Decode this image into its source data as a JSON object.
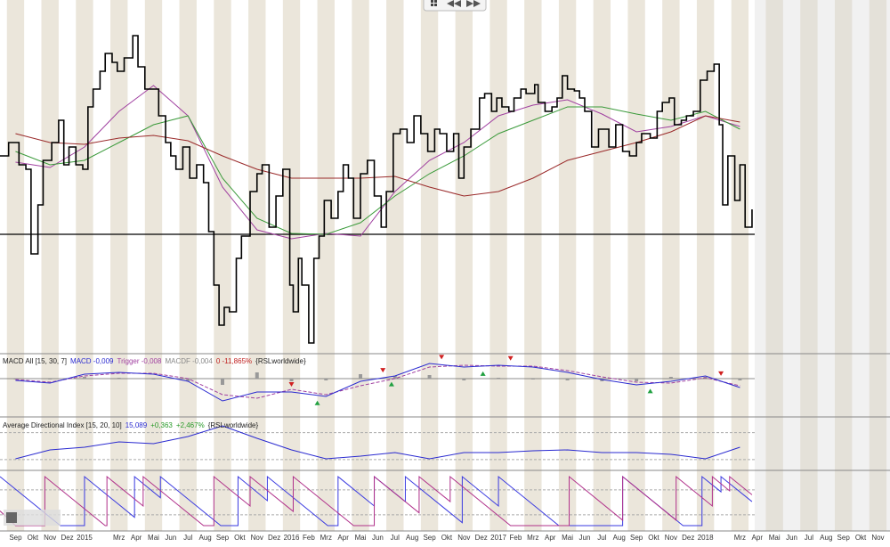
{
  "chart_data": [
    {
      "type": "price",
      "categories": [
        "Sep",
        "Okt",
        "Nov",
        "Dez",
        "2015",
        null,
        "Mrz",
        "Apr",
        "Mai",
        "Jun",
        "Jul",
        "Aug",
        "Sep",
        "Okt",
        "Nov",
        "Dez",
        "2016",
        "Feb",
        "Mrz",
        "Apr",
        "Mai",
        "Jun",
        "Jul",
        "Aug",
        "Sep",
        "Okt",
        "Nov",
        "Dez",
        "2017",
        "Feb",
        "Mrz",
        "Apr",
        "Mai",
        "Jun",
        "Jul",
        "Aug",
        "Sep",
        "Okt",
        "Nov",
        "Dez",
        "2018",
        null,
        "Mrz",
        "Apr",
        "Mai",
        "Jun",
        "Jul",
        "Aug",
        "Sep",
        "Okt",
        "Nov"
      ],
      "xlim": [
        -0.9,
        50.7
      ],
      "ylim": [
        0,
        370
      ],
      "hlines": [
        137
      ],
      "series": [
        {
          "color": "#000000",
          "style": "step",
          "x": [
            -0.9,
            -0.4,
            0.2,
            0.6,
            0.9,
            1.3,
            1.6,
            2.1,
            2.5,
            2.8,
            3.1,
            3.5,
            3.9,
            4.2,
            4.5,
            4.9,
            5.2,
            5.6,
            5.9,
            6.3,
            6.8,
            7.1,
            7.5,
            7.9,
            8.3,
            8.7,
            9.0,
            9.3,
            9.7,
            10.1,
            10.5,
            10.9,
            11.2,
            11.5,
            11.8,
            12.1,
            12.4,
            12.8,
            13.1,
            13.6,
            14.0,
            14.3,
            14.7,
            15.1,
            15.5,
            15.9,
            16.1,
            16.4,
            16.6,
            17.0,
            17.3,
            17.6,
            17.9,
            18.3,
            18.7,
            19.0,
            19.3,
            19.6,
            20.0,
            20.4,
            20.8,
            21.2,
            21.5,
            21.9,
            22.3,
            22.7,
            23.1,
            23.5,
            23.9,
            24.3,
            24.6,
            25.0,
            25.4,
            25.7,
            26.0,
            26.4,
            26.9,
            27.2,
            27.6,
            27.9,
            28.2,
            28.6,
            28.9,
            29.3,
            29.6,
            30.1,
            30.3,
            30.7,
            31.1,
            31.4,
            31.7,
            32.0,
            32.4,
            32.7,
            33.0,
            33.4,
            33.8,
            34.2,
            34.4,
            34.8,
            35.2,
            35.6,
            36.0,
            36.3,
            36.8,
            37.2,
            37.5,
            37.9,
            38.2,
            38.6,
            38.9,
            39.3,
            39.7,
            40.1,
            40.5,
            40.8,
            41.0,
            41.3,
            41.7,
            42.0,
            42.3,
            42.7
          ],
          "values": [
            225,
            240,
            215,
            210,
            115,
            170,
            220,
            240,
            265,
            215,
            235,
            215,
            210,
            280,
            300,
            320,
            340,
            330,
            320,
            335,
            360,
            325,
            300,
            300,
            270,
            240,
            225,
            210,
            235,
            200,
            215,
            195,
            140,
            80,
            35,
            55,
            50,
            110,
            135,
            185,
            205,
            215,
            145,
            180,
            210,
            80,
            50,
            110,
            80,
            15,
            110,
            135,
            175,
            155,
            185,
            215,
            200,
            155,
            205,
            220,
            180,
            145,
            185,
            250,
            255,
            240,
            270,
            250,
            230,
            255,
            250,
            230,
            250,
            200,
            235,
            255,
            290,
            295,
            275,
            290,
            280,
            275,
            290,
            300,
            295,
            305,
            285,
            275,
            280,
            290,
            315,
            300,
            298,
            290,
            275,
            235,
            255,
            255,
            235,
            260,
            230,
            225,
            240,
            250,
            245,
            275,
            285,
            290,
            260,
            265,
            270,
            275,
            310,
            320,
            328,
            260,
            170,
            225,
            175,
            215,
            145,
            165
          ]
        },
        {
          "color": "#a040a0",
          "style": "line",
          "x": [
            0,
            2,
            4,
            6,
            8,
            10,
            12,
            14,
            16,
            18,
            20,
            22,
            24,
            26,
            28,
            30,
            32,
            34,
            36,
            38,
            40,
            42
          ],
          "values": [
            218,
            212,
            235,
            275,
            304,
            270,
            190,
            142,
            132,
            138,
            135,
            185,
            220,
            240,
            270,
            282,
            288,
            272,
            252,
            258,
            270,
            258
          ]
        },
        {
          "color": "#3a9a3a",
          "style": "line",
          "x": [
            0,
            2,
            4,
            6,
            8,
            10,
            12,
            14,
            16,
            18,
            20,
            22,
            24,
            26,
            28,
            30,
            32,
            34,
            36,
            38,
            40,
            42
          ],
          "values": [
            230,
            215,
            220,
            240,
            260,
            270,
            200,
            155,
            138,
            137,
            150,
            180,
            205,
            225,
            250,
            265,
            280,
            280,
            272,
            265,
            275,
            255
          ]
        },
        {
          "color": "#9a2a2a",
          "style": "line",
          "x": [
            0,
            2,
            4,
            6,
            8,
            10,
            12,
            14,
            16,
            18,
            20,
            22,
            24,
            26,
            28,
            30,
            32,
            34,
            36,
            38,
            40,
            42
          ],
          "values": [
            250,
            240,
            238,
            245,
            248,
            242,
            225,
            210,
            200,
            200,
            200,
            202,
            190,
            180,
            185,
            200,
            220,
            230,
            240,
            252,
            270,
            263
          ]
        }
      ]
    },
    {
      "type": "macd",
      "title": "MACD All [15, 30, 7]",
      "readouts": [
        {
          "text": "MACD -0,009",
          "color": "#2a2ad0"
        },
        {
          "text": "Trigger -0,008",
          "color": "#a040a0"
        },
        {
          "text": "MACDF -0,004",
          "color": "#888888"
        },
        {
          "text": "0 -11,865%",
          "color": "#c02020"
        },
        {
          "text": "{RSLworldwide}",
          "color": "#222222"
        }
      ],
      "xlim": [
        -0.9,
        50.7
      ],
      "ylim": [
        -0.043,
        0.027
      ],
      "hlines": [
        0
      ],
      "series": [
        {
          "color": "#999999",
          "style": "bars",
          "x": [
            0,
            2,
            4,
            6,
            8,
            10,
            12,
            14,
            16,
            18,
            20,
            22,
            24,
            26,
            28,
            30,
            32,
            34,
            36,
            38,
            40,
            42
          ],
          "values": [
            -0.001,
            -0.001,
            0.002,
            0.001,
            -0.001,
            -0.003,
            -0.007,
            0.007,
            -0.003,
            -0.002,
            0.005,
            0.003,
            0.004,
            -0.002,
            0.001,
            -0.001,
            -0.002,
            -0.003,
            -0.003,
            0.002,
            0.002,
            -0.002
          ]
        },
        {
          "color": "#a040a0",
          "style": "dashed",
          "x": [
            0,
            2,
            4,
            6,
            8,
            10,
            12,
            14,
            16,
            18,
            20,
            22,
            24,
            26,
            28,
            30,
            32,
            34,
            36,
            38,
            40,
            42
          ],
          "values": [
            -0.001,
            -0.004,
            0.003,
            0.006,
            0.006,
            0.0,
            -0.018,
            -0.022,
            -0.012,
            -0.018,
            -0.008,
            0.0,
            0.013,
            0.015,
            0.014,
            0.014,
            0.009,
            0.002,
            -0.004,
            -0.005,
            0.001,
            -0.008
          ]
        },
        {
          "color": "#2a2ad0",
          "style": "line",
          "x": [
            0,
            2,
            4,
            6,
            8,
            10,
            12,
            14,
            16,
            18,
            20,
            22,
            24,
            26,
            28,
            30,
            32,
            34,
            36,
            38,
            40,
            42
          ],
          "values": [
            -0.002,
            -0.005,
            0.005,
            0.007,
            0.005,
            -0.003,
            -0.025,
            -0.015,
            -0.015,
            -0.02,
            -0.003,
            0.003,
            0.017,
            0.013,
            0.015,
            0.013,
            0.007,
            -0.001,
            -0.007,
            -0.003,
            0.003,
            -0.01
          ]
        }
      ],
      "sell_signals": [
        16.0,
        21.3,
        24.7,
        28.7,
        40.9
      ],
      "buy_signals": [
        17.5,
        21.8,
        27.1,
        36.8
      ]
    },
    {
      "type": "adx",
      "title": "Average Directional Index [15, 20, 10]",
      "readouts": [
        {
          "text": "15,089",
          "color": "#2a2ad0"
        },
        {
          "text": "+0,363",
          "color": "#2a9a2a"
        },
        {
          "text": "+2,467%",
          "color": "#2a9a2a"
        },
        {
          "text": "{RSLworldwide}",
          "color": "#222222"
        }
      ],
      "xlim": [
        -0.9,
        50.7
      ],
      "ylim": [
        1,
        30
      ],
      "series": [
        {
          "color": "#2a2ad0",
          "style": "line",
          "x": [
            0,
            2,
            4,
            6,
            8,
            10,
            12,
            14,
            16,
            18,
            20,
            22,
            24,
            26,
            28,
            30,
            32,
            34,
            36,
            38,
            40,
            42
          ],
          "values": [
            7.5,
            12.5,
            14,
            17,
            16,
            20,
            26,
            19,
            12.5,
            7.5,
            9,
            11,
            7.5,
            11,
            11,
            12,
            12.5,
            11,
            11,
            10,
            7.5,
            14
          ]
        }
      ]
    },
    {
      "type": "oscillator",
      "xlim": [
        -0.9,
        50.7
      ],
      "ylim": [
        0,
        100
      ],
      "series": [
        {
          "color": "#3a3ae0",
          "style": "line",
          "x": [
            -0.9,
            2.6,
            4.0,
            4.0,
            6.9,
            6.9,
            8.4,
            8.4,
            11.9,
            12.9,
            12.9,
            14.6,
            14.6,
            18.1,
            18.7,
            18.7,
            20.8,
            20.8,
            22.6,
            22.6,
            25.9,
            25.9,
            28.0,
            28.0,
            31.5,
            35.2,
            35.2,
            38.7,
            39.8,
            39.8,
            40.9,
            40.9,
            42.7
          ],
          "values": [
            100,
            0,
            0,
            100,
            17,
            100,
            57,
            100,
            0,
            0,
            100,
            51,
            100,
            0,
            0,
            100,
            40,
            100,
            49,
            100,
            6,
            100,
            40,
            100,
            0,
            0,
            100,
            0,
            0,
            100,
            69,
            100,
            49
          ]
        },
        {
          "color": "#b0308a",
          "style": "line",
          "x": [
            -0.9,
            0.0,
            1.7,
            1.7,
            5.2,
            5.3,
            5.3,
            7.4,
            7.4,
            10.9,
            11.5,
            11.5,
            13.6,
            13.6,
            16.1,
            16.1,
            19.6,
            20.8,
            20.8,
            23.4,
            23.4,
            25.2,
            25.2,
            28.7,
            32.1,
            32.1,
            35.2,
            35.2,
            38.3,
            38.3,
            40.4,
            40.4,
            41.4,
            41.4,
            42.7
          ],
          "values": [
            30,
            0,
            0,
            100,
            0,
            0,
            100,
            40,
            100,
            0,
            0,
            100,
            40,
            100,
            29,
            100,
            0,
            0,
            100,
            26,
            100,
            49,
            100,
            0,
            0,
            100,
            11,
            100,
            11,
            100,
            40,
            100,
            71,
            100,
            63
          ]
        }
      ]
    }
  ]
}
